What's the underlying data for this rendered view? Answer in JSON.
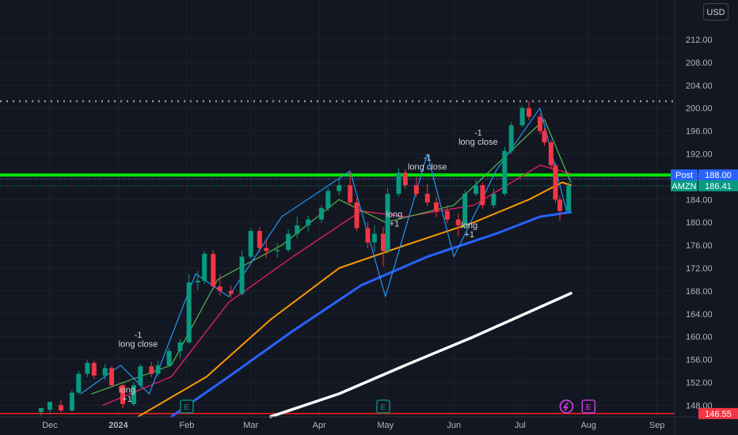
{
  "toolbar": {
    "currency_label": "USD"
  },
  "chart_data": {
    "type": "candlestick",
    "symbol": "AMZN",
    "ylim": [
      146,
      214
    ],
    "y_ticks": [
      "212.00",
      "208.00",
      "204.00",
      "200.00",
      "196.00",
      "192.00",
      "188.00",
      "184.00",
      "180.00",
      "176.00",
      "172.00",
      "168.00",
      "164.00",
      "160.00",
      "156.00",
      "152.00",
      "148.00"
    ],
    "x_ticks": [
      "Dec",
      "2024",
      "Feb",
      "Mar",
      "Apr",
      "May",
      "Jun",
      "Jul",
      "Aug",
      "Sep"
    ],
    "price_labels": [
      {
        "name": "Post",
        "value": "188.00",
        "color": "#2962ff"
      },
      {
        "name": "AMZN",
        "value": "186.41",
        "color": "#089981"
      },
      {
        "name": "",
        "value": "146.55",
        "color": "#f23645"
      }
    ],
    "levels": [
      {
        "name": "resistance",
        "value": 188.3,
        "color": "#00e600"
      },
      {
        "name": "support",
        "value": 146.55,
        "color": "#ff2020"
      },
      {
        "name": "high",
        "value": 201.2,
        "color": "#9598a1"
      }
    ],
    "annotations": [
      {
        "text": "-1",
        "x": "2024-01-10",
        "y": 159.8
      },
      {
        "text": "long close",
        "x": "2024-01-10",
        "y": 158.2
      },
      {
        "text": "long",
        "x": "2024-01-05",
        "y": 150.2
      },
      {
        "text": "+1",
        "x": "2024-01-05",
        "y": 148.6
      },
      {
        "text": "long",
        "x": "2024-05-05",
        "y": 180.9
      },
      {
        "text": "+1",
        "x": "2024-05-05",
        "y": 179.3
      },
      {
        "text": "-1",
        "x": "2024-05-20",
        "y": 190.8
      },
      {
        "text": "long close",
        "x": "2024-05-20",
        "y": 189.2
      },
      {
        "text": "long",
        "x": "2024-06-08",
        "y": 179.0
      },
      {
        "text": "+1",
        "x": "2024-06-08",
        "y": 177.4
      },
      {
        "text": "-1",
        "x": "2024-06-12",
        "y": 195.2
      },
      {
        "text": "long close",
        "x": "2024-06-12",
        "y": 193.6
      }
    ],
    "series": [
      {
        "name": "",
        "color": "#ffffff",
        "points": [
          [
            "2024-03-10",
            146
          ],
          [
            "2024-04-10",
            150
          ],
          [
            "2024-05-10",
            155
          ],
          [
            "2024-06-10",
            160
          ],
          [
            "2024-07-24",
            167.6
          ]
        ]
      },
      {
        "name": "",
        "color": "#2962ff",
        "points": [
          [
            "2024-01-25",
            146
          ],
          [
            "2024-02-20",
            153
          ],
          [
            "2024-03-20",
            161
          ],
          [
            "2024-04-20",
            169
          ],
          [
            "2024-05-20",
            174
          ],
          [
            "2024-06-20",
            178
          ],
          [
            "2024-07-10",
            181
          ],
          [
            "2024-07-24",
            181.8
          ]
        ]
      },
      {
        "name": "",
        "color": "#ff9800",
        "points": [
          [
            "2024-01-10",
            146
          ],
          [
            "2024-02-10",
            153
          ],
          [
            "2024-03-10",
            163
          ],
          [
            "2024-04-10",
            172
          ],
          [
            "2024-05-10",
            176
          ],
          [
            "2024-06-10",
            180
          ],
          [
            "2024-07-05",
            184
          ],
          [
            "2024-07-20",
            187
          ],
          [
            "2024-07-24",
            186.5
          ]
        ]
      },
      {
        "name": "",
        "color": "#e91e63",
        "points": [
          [
            "2023-12-25",
            148
          ],
          [
            "2024-01-25",
            153
          ],
          [
            "2024-02-20",
            166
          ],
          [
            "2024-03-20",
            174
          ],
          [
            "2024-04-20",
            182
          ],
          [
            "2024-05-10",
            181
          ],
          [
            "2024-06-10",
            183
          ],
          [
            "2024-07-10",
            190
          ],
          [
            "2024-07-24",
            188.5
          ]
        ]
      },
      {
        "name": "",
        "color": "#4caf50",
        "points": [
          [
            "2023-12-20",
            150
          ],
          [
            "2024-01-25",
            155
          ],
          [
            "2024-02-15",
            170
          ],
          [
            "2024-03-15",
            176
          ],
          [
            "2024-04-10",
            184
          ],
          [
            "2024-05-01",
            180
          ],
          [
            "2024-06-01",
            183
          ],
          [
            "2024-07-01",
            194
          ],
          [
            "2024-07-12",
            198
          ],
          [
            "2024-07-24",
            187
          ]
        ]
      },
      {
        "name": "",
        "color": "#2196f3",
        "points": [
          [
            "2023-12-15",
            150
          ],
          [
            "2024-01-02",
            155
          ],
          [
            "2024-01-15",
            150
          ],
          [
            "2024-02-05",
            171
          ],
          [
            "2024-02-20",
            167
          ],
          [
            "2024-03-15",
            181
          ],
          [
            "2024-04-15",
            189
          ],
          [
            "2024-05-01",
            167
          ],
          [
            "2024-05-20",
            192
          ],
          [
            "2024-06-01",
            174
          ],
          [
            "2024-06-20",
            189
          ],
          [
            "2024-07-10",
            200
          ],
          [
            "2024-07-22",
            182
          ]
        ]
      }
    ],
    "candles": [
      [
        "2023-11-27",
        146.8,
        147.5,
        146.2,
        147.2
      ],
      [
        "2023-12-01",
        147.2,
        148.6,
        146.5,
        148.0
      ],
      [
        "2023-12-06",
        148.0,
        147.1,
        146.8,
        148.9
      ],
      [
        "2023-12-11",
        147.1,
        150.2,
        146.9,
        150.6
      ],
      [
        "2023-12-14",
        150.2,
        153.5,
        149.8,
        154.0
      ],
      [
        "2023-12-18",
        153.5,
        155.4,
        152.9,
        155.9
      ],
      [
        "2023-12-21",
        155.4,
        153.2,
        152.6,
        155.8
      ],
      [
        "2023-12-26",
        153.2,
        154.5,
        152.4,
        155.2
      ],
      [
        "2023-12-29",
        154.5,
        151.5,
        151.1,
        154.9
      ],
      [
        "2024-01-03",
        151.5,
        148.2,
        147.5,
        151.8
      ],
      [
        "2024-01-08",
        148.2,
        151.5,
        147.9,
        152.1
      ],
      [
        "2024-01-11",
        151.5,
        154.8,
        151.0,
        155.3
      ],
      [
        "2024-01-16",
        154.8,
        153.5,
        152.9,
        155.6
      ],
      [
        "2024-01-19",
        153.5,
        155.0,
        153.0,
        155.8
      ],
      [
        "2024-01-24",
        155.0,
        157.5,
        154.7,
        158.1
      ],
      [
        "2024-01-29",
        157.5,
        159.0,
        156.2,
        159.6
      ],
      [
        "2024-02-02",
        159.0,
        169.5,
        158.8,
        171.0
      ],
      [
        "2024-02-06",
        169.5,
        169.8,
        168.2,
        171.5
      ],
      [
        "2024-02-09",
        169.8,
        174.5,
        169.2,
        175.0
      ],
      [
        "2024-02-13",
        174.5,
        168.8,
        168.2,
        175.2
      ],
      [
        "2024-02-16",
        168.8,
        168.0,
        167.2,
        171.0
      ],
      [
        "2024-02-21",
        168.0,
        167.5,
        166.8,
        169.0
      ],
      [
        "2024-02-26",
        167.5,
        174.0,
        167.2,
        175.1
      ],
      [
        "2024-03-01",
        174.0,
        178.5,
        173.6,
        179.0
      ],
      [
        "2024-03-05",
        178.5,
        175.5,
        174.8,
        179.2
      ],
      [
        "2024-03-08",
        175.5,
        175.0,
        173.8,
        176.8
      ],
      [
        "2024-03-13",
        175.0,
        175.2,
        173.9,
        176.4
      ],
      [
        "2024-03-18",
        175.2,
        178.0,
        174.8,
        178.8
      ],
      [
        "2024-03-22",
        178.0,
        179.5,
        177.2,
        181.0
      ],
      [
        "2024-03-27",
        179.5,
        180.5,
        178.4,
        181.2
      ],
      [
        "2024-04-02",
        180.5,
        182.5,
        179.9,
        183.0
      ],
      [
        "2024-04-05",
        182.5,
        185.5,
        182.0,
        186.0
      ],
      [
        "2024-04-10",
        185.5,
        186.5,
        184.8,
        187.8
      ],
      [
        "2024-04-15",
        186.5,
        183.5,
        182.9,
        189.0
      ],
      [
        "2024-04-18",
        183.5,
        179.0,
        178.5,
        184.3
      ],
      [
        "2024-04-23",
        179.0,
        176.5,
        175.5,
        180.0
      ],
      [
        "2024-04-26",
        176.5,
        178.0,
        174.9,
        179.5
      ],
      [
        "2024-04-30",
        178.0,
        175.0,
        172.3,
        179.2
      ],
      [
        "2024-05-02",
        175.0,
        185.0,
        174.5,
        186.0
      ],
      [
        "2024-05-07",
        185.0,
        188.7,
        184.5,
        189.5
      ],
      [
        "2024-05-10",
        188.7,
        186.5,
        185.9,
        189.3
      ],
      [
        "2024-05-15",
        186.5,
        185.0,
        184.5,
        188.0
      ],
      [
        "2024-05-20",
        185.0,
        183.5,
        182.8,
        186.7
      ],
      [
        "2024-05-24",
        183.5,
        182.0,
        180.9,
        184.4
      ],
      [
        "2024-05-29",
        182.0,
        180.5,
        179.9,
        183.0
      ],
      [
        "2024-06-03",
        180.5,
        179.5,
        177.5,
        181.6
      ],
      [
        "2024-06-06",
        179.5,
        185.0,
        178.9,
        185.7
      ],
      [
        "2024-06-11",
        185.0,
        186.5,
        184.6,
        187.5
      ],
      [
        "2024-06-14",
        186.5,
        183.0,
        182.4,
        187.0
      ],
      [
        "2024-06-19",
        183.0,
        185.0,
        182.5,
        186.0
      ],
      [
        "2024-06-24",
        185.0,
        192.5,
        184.6,
        193.2
      ],
      [
        "2024-06-27",
        192.5,
        197.0,
        192.0,
        197.6
      ],
      [
        "2024-07-02",
        197.0,
        200.0,
        196.7,
        200.4
      ],
      [
        "2024-07-05",
        200.0,
        198.5,
        197.9,
        201.2
      ],
      [
        "2024-07-10",
        198.5,
        196.0,
        195.4,
        199.0
      ],
      [
        "2024-07-12",
        196.0,
        194.0,
        193.4,
        196.5
      ],
      [
        "2024-07-15",
        194.0,
        190.0,
        189.4,
        194.4
      ],
      [
        "2024-07-17",
        190.0,
        184.0,
        183.4,
        190.5
      ],
      [
        "2024-07-19",
        184.0,
        182.0,
        180.3,
        184.6
      ],
      [
        "2024-07-23",
        182.0,
        186.4,
        181.5,
        187.0
      ]
    ],
    "event_markers": [
      {
        "kind": "earnings",
        "label": "E",
        "x": "2024-02-01"
      },
      {
        "kind": "earnings",
        "label": "E",
        "x": "2024-04-30"
      },
      {
        "kind": "split",
        "label": "",
        "x": "2024-07-22"
      },
      {
        "kind": "earnings",
        "label": "E",
        "x": "2024-08-01"
      }
    ]
  }
}
